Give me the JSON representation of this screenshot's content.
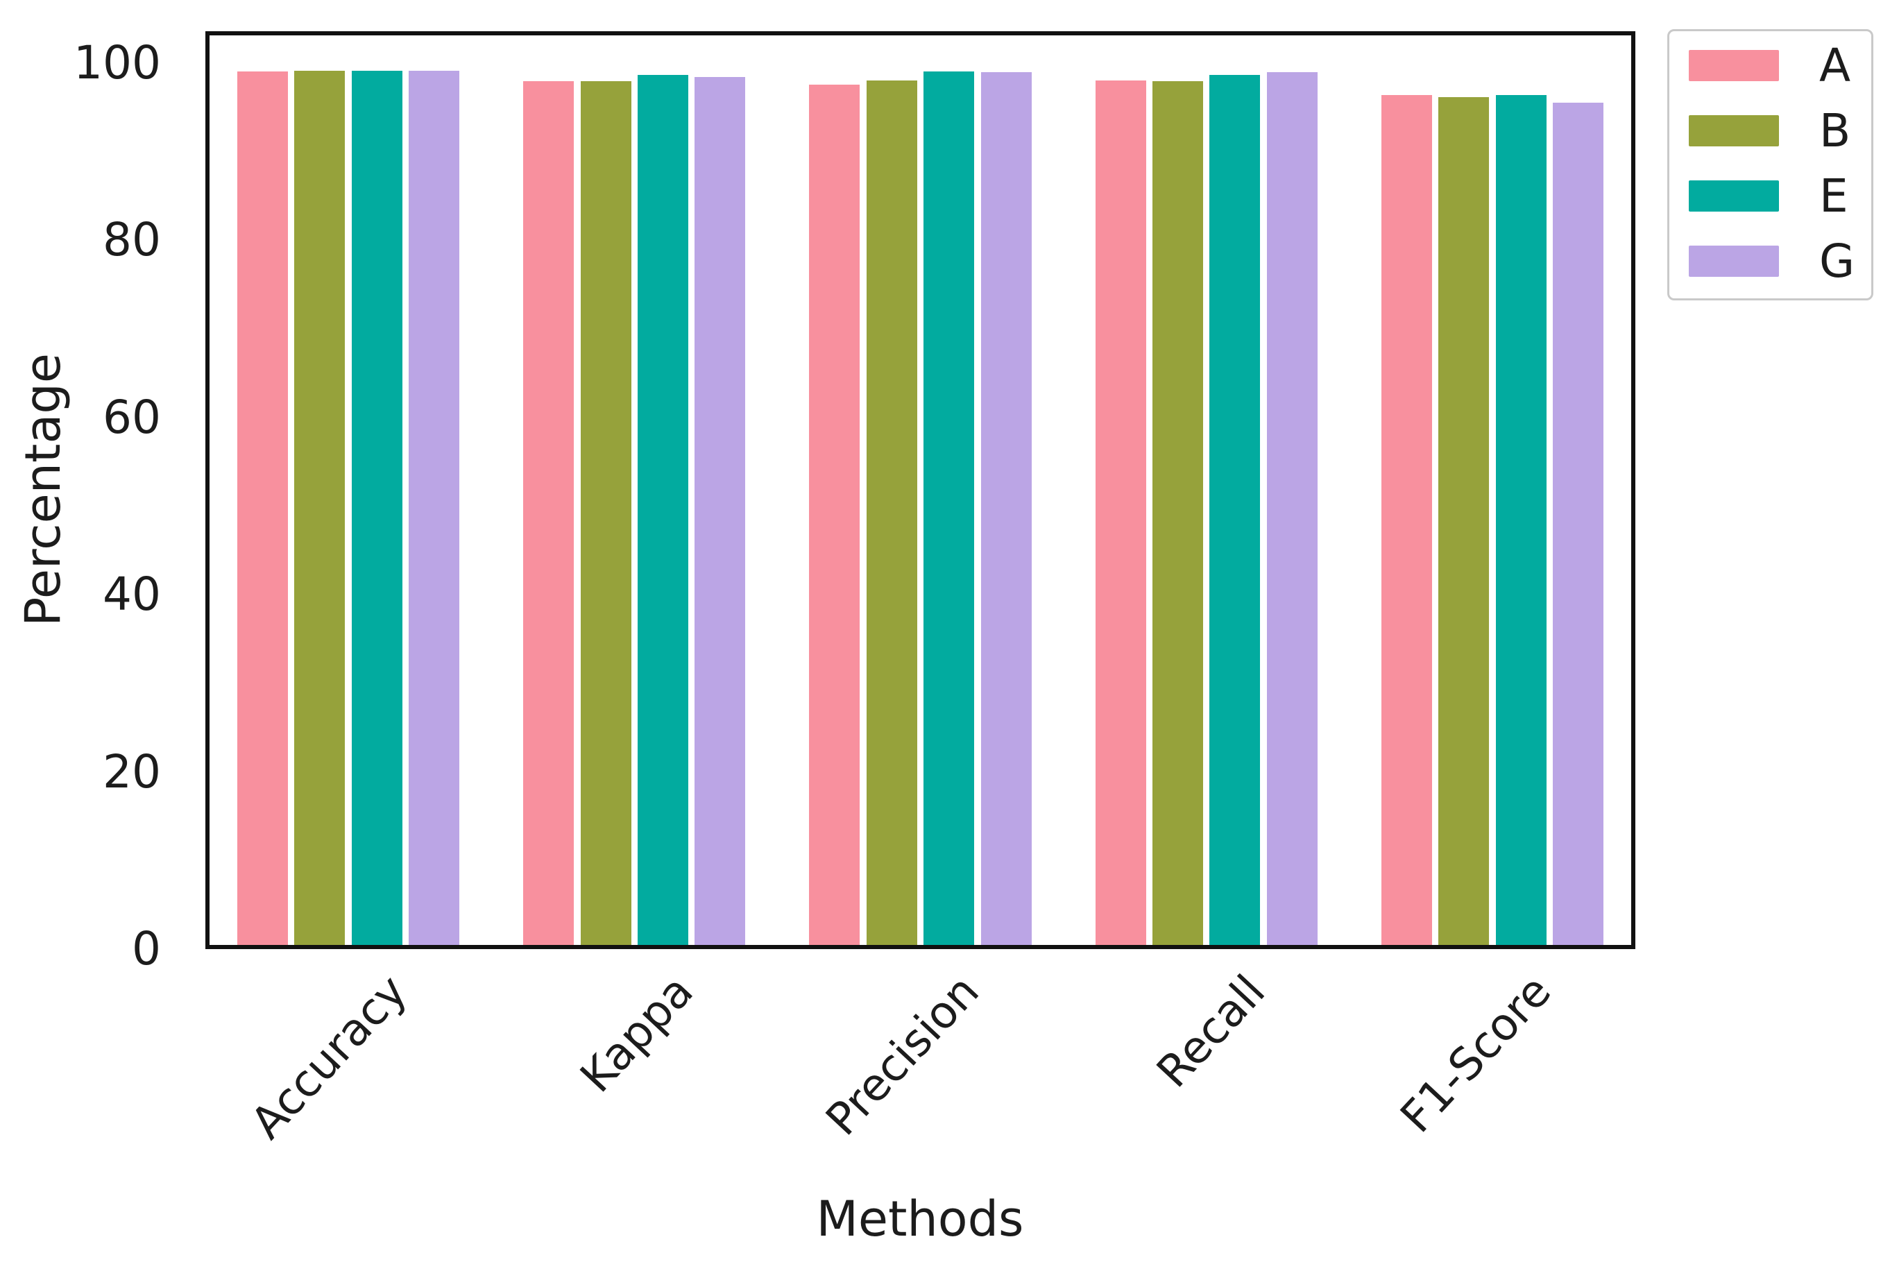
{
  "chart_data": {
    "type": "bar",
    "title": "",
    "xlabel": "Methods",
    "ylabel": "Percentage",
    "categories": [
      "Accuracy",
      "Kappa",
      "Precision",
      "Recall",
      "F1-Score"
    ],
    "series": [
      {
        "name": "A",
        "color": "#f8909e",
        "values": [
          98.6,
          97.5,
          97.1,
          97.6,
          95.9
        ]
      },
      {
        "name": "B",
        "color": "#96a23b",
        "values": [
          98.7,
          97.5,
          97.6,
          97.5,
          95.7
        ]
      },
      {
        "name": "E",
        "color": "#02ab9f",
        "values": [
          98.7,
          98.2,
          98.6,
          98.2,
          95.9
        ]
      },
      {
        "name": "G",
        "color": "#bba5e5",
        "values": [
          98.7,
          98.0,
          98.5,
          98.5,
          95.1
        ]
      }
    ],
    "ylim": [
      0,
      103.6
    ],
    "yticks": [
      0,
      20,
      40,
      60,
      80,
      100
    ],
    "xticklabel_rotation_deg": 45,
    "grid": false,
    "legend_position": "upper right outside",
    "axis_color": "#111111",
    "text_color": "#1c1c1c",
    "background_color": "#ffffff"
  }
}
